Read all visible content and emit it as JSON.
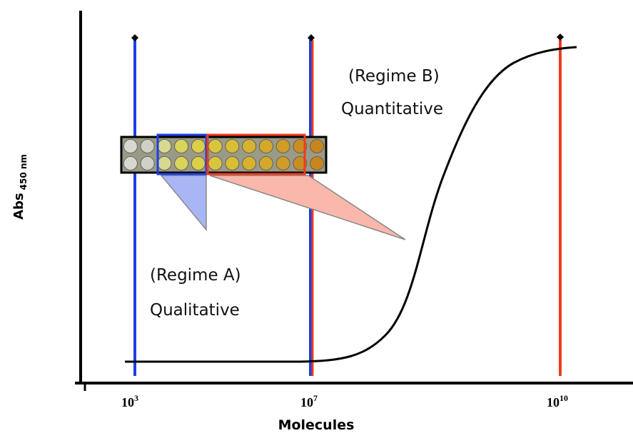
{
  "y_axis": {
    "label": "Abs",
    "subscript": "450 nm"
  },
  "x_axis": {
    "label": "Molecules",
    "ticks": [
      {
        "base": "10",
        "exponent": "3"
      },
      {
        "base": "10",
        "exponent": "7"
      },
      {
        "base": "10",
        "exponent": "10"
      }
    ]
  },
  "regimes": [
    {
      "name": "(Regime A)",
      "label": "Qualitative"
    },
    {
      "name": "(Regime B)",
      "label": "Quantitative"
    }
  ]
}
